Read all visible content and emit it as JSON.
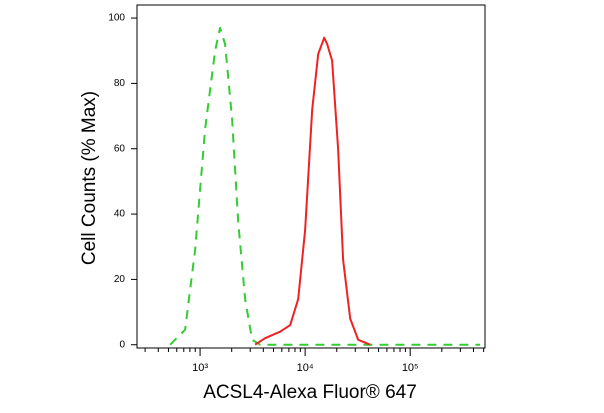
{
  "chart_data": {
    "type": "line",
    "xlabel": "ACSL4-Alexa Fluor® 647",
    "ylabel": "Cell Counts (% Max)",
    "xscale": "log",
    "xlim": [
      251,
      515000
    ],
    "ylim": [
      -1,
      104
    ],
    "xticks": [
      {
        "value": 1000,
        "label": "10³"
      },
      {
        "value": 10000,
        "label": "10⁴"
      },
      {
        "value": 100000,
        "label": "10⁵"
      }
    ],
    "xminorticks": [
      300,
      400,
      500,
      600,
      700,
      800,
      900,
      2000,
      3000,
      4000,
      5000,
      6000,
      7000,
      8000,
      9000,
      20000,
      30000,
      40000,
      50000,
      60000,
      70000,
      80000,
      90000,
      200000,
      300000,
      400000,
      500000
    ],
    "yticks": [
      0,
      20,
      40,
      60,
      80,
      100
    ],
    "series": [
      {
        "color": "#33cc33",
        "dashed": true,
        "x": [
          518,
          720,
          896,
          1116,
          1389,
          1551,
          1729,
          2019,
          2300,
          2683,
          3128,
          3727,
          464000
        ],
        "values": [
          0,
          4.6,
          29,
          66,
          90,
          97,
          92,
          69,
          38,
          14,
          1.5,
          0,
          0
        ]
      },
      {
        "color": "#ee2222",
        "dashed": false,
        "x": [
          3342,
          4160,
          5780,
          7200,
          8580,
          10000,
          11660,
          13300,
          15170,
          16220,
          18070,
          20610,
          23000,
          26830,
          31990,
          41570
        ],
        "values": [
          0,
          2,
          4,
          6,
          14,
          35,
          72,
          89,
          94,
          92,
          87,
          60,
          26,
          8,
          1.5,
          0
        ]
      }
    ]
  }
}
